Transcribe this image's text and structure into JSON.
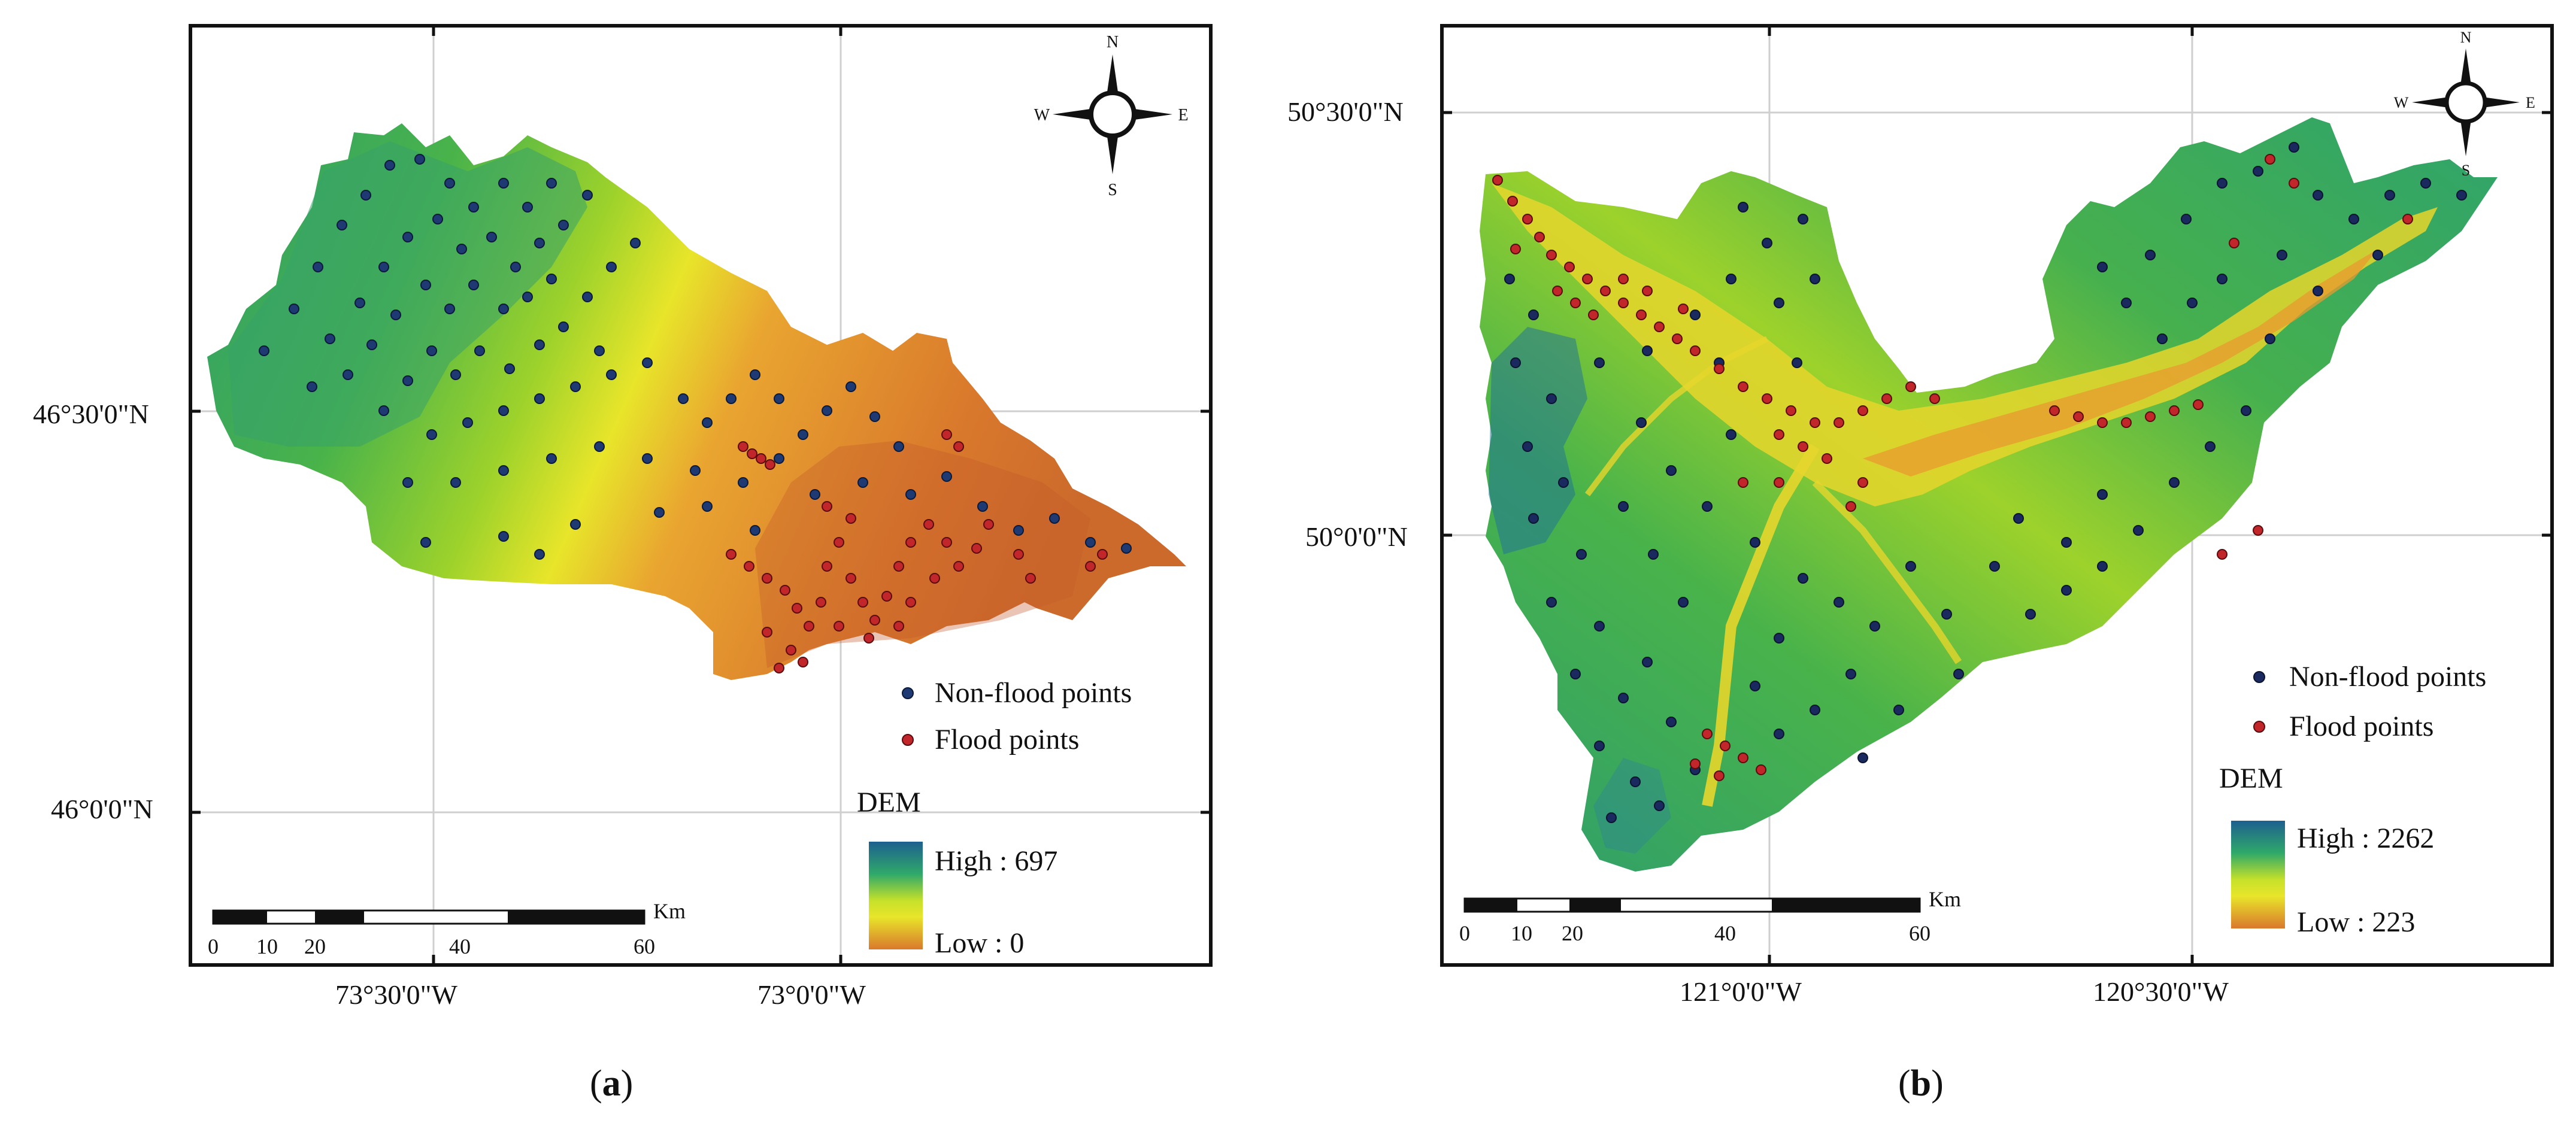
{
  "panels": [
    {
      "id": "a",
      "caption_letter": "a",
      "lat_labels": [
        "46°30'0\"N",
        "46°0'0\"N"
      ],
      "lon_labels": [
        "73°30'0\"W",
        "73°0'0\"W"
      ],
      "compass": {
        "n": "N",
        "s": "S",
        "e": "E",
        "w": "W"
      },
      "legend": {
        "non_flood": "Non-flood points",
        "flood": "Flood points",
        "dem_title": "DEM",
        "dem_high": "High : 697",
        "dem_low": "Low : 0"
      },
      "scalebar": {
        "unit": "Km",
        "ticks": [
          "0",
          "10",
          "20",
          "40",
          "60"
        ]
      }
    },
    {
      "id": "b",
      "caption_letter": "b",
      "lat_labels": [
        "50°30'0\"N",
        "50°0'0\"N"
      ],
      "lon_labels": [
        "121°0'0\"W",
        "120°30'0\"W"
      ],
      "compass": {
        "n": "N",
        "s": "S",
        "e": "E",
        "w": "W"
      },
      "legend": {
        "non_flood": "Non-flood points",
        "flood": "Flood points",
        "dem_title": "DEM",
        "dem_high": "High : 2262",
        "dem_low": "Low : 223"
      },
      "scalebar": {
        "unit": "Km",
        "ticks": [
          "0",
          "10",
          "20",
          "40",
          "60"
        ]
      }
    }
  ],
  "colors": {
    "non_flood_point": "#1f3a73",
    "flood_point": "#c0262a",
    "dem_high": "#1e5f8f",
    "dem_mid": "#e8e52a",
    "dem_low": "#d9792c"
  }
}
